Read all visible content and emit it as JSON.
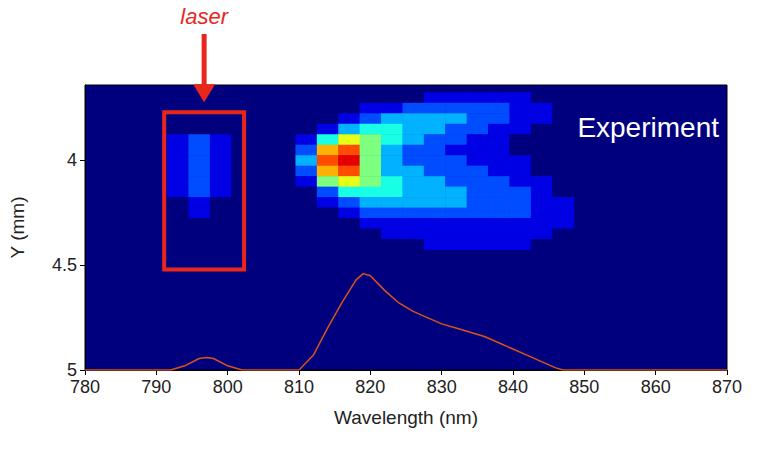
{
  "chart_data": {
    "type": "heatmap",
    "x_label": "Wavelength (nm)",
    "y_label": "Y (mm)",
    "xlim": [
      780,
      870
    ],
    "xticks": [
      780,
      790,
      800,
      810,
      820,
      830,
      840,
      850,
      860,
      870
    ],
    "ylim": [
      5,
      3.64
    ],
    "yticks": [
      4,
      4.5,
      5
    ],
    "grid": false,
    "annotation": {
      "text": "Experiment",
      "color": "#ffffff"
    },
    "highlight": {
      "text": "laser",
      "color": "#e8261c",
      "xlim": [
        791.1,
        802.3
      ],
      "ylim": [
        4.52,
        3.77
      ]
    },
    "heatmap": {
      "x": [
        793,
        796,
        799,
        802,
        805,
        808,
        811,
        814,
        817,
        820,
        823,
        826,
        829,
        832,
        835,
        838,
        841,
        844,
        847
      ],
      "y": [
        3.7,
        3.75,
        3.8,
        3.85,
        3.9,
        3.95,
        4.0,
        4.05,
        4.1,
        4.15,
        4.2,
        4.25,
        4.3,
        4.35,
        4.4
      ],
      "zlim": [
        0,
        10
      ],
      "z": [
        [
          0,
          0,
          0,
          0,
          0,
          0,
          0,
          0,
          0,
          0,
          0,
          0,
          1,
          1,
          1,
          1,
          1,
          0,
          0
        ],
        [
          0,
          0,
          0,
          0,
          0,
          0,
          0,
          0,
          0,
          1,
          1,
          2,
          2,
          2,
          2,
          2,
          1,
          1,
          0
        ],
        [
          0,
          0,
          0,
          0,
          0,
          0,
          0,
          0,
          1,
          2,
          3,
          3,
          3,
          3,
          2,
          2,
          1,
          1,
          0
        ],
        [
          0,
          0,
          0,
          0,
          0,
          0,
          0,
          1,
          3,
          4,
          4,
          3,
          3,
          2,
          2,
          1,
          1,
          0,
          0
        ],
        [
          1,
          2,
          1,
          0,
          0,
          0,
          1,
          4,
          6,
          5,
          4,
          3,
          2,
          2,
          1,
          1,
          0,
          0,
          0
        ],
        [
          1,
          2,
          1,
          0,
          0,
          0,
          2,
          7,
          8,
          5,
          3,
          2,
          2,
          1,
          1,
          1,
          0,
          0,
          0
        ],
        [
          1,
          2,
          1,
          0,
          0,
          0,
          3,
          8,
          9,
          5,
          3,
          2,
          2,
          2,
          1,
          1,
          1,
          0,
          0
        ],
        [
          1,
          2,
          1,
          0,
          0,
          0,
          2,
          7,
          8,
          5,
          3,
          3,
          2,
          2,
          2,
          1,
          1,
          0,
          0
        ],
        [
          1,
          2,
          1,
          0,
          0,
          0,
          1,
          5,
          6,
          5,
          4,
          3,
          3,
          2,
          2,
          2,
          1,
          1,
          0
        ],
        [
          1,
          2,
          1,
          0,
          0,
          0,
          0,
          2,
          4,
          4,
          4,
          3,
          3,
          3,
          2,
          2,
          2,
          1,
          0
        ],
        [
          0,
          1,
          0,
          0,
          0,
          0,
          0,
          1,
          2,
          3,
          3,
          3,
          3,
          3,
          2,
          2,
          2,
          1,
          1
        ],
        [
          0,
          1,
          0,
          0,
          0,
          0,
          0,
          0,
          1,
          2,
          2,
          2,
          2,
          2,
          2,
          2,
          2,
          1,
          1
        ],
        [
          0,
          0,
          0,
          0,
          0,
          0,
          0,
          0,
          0,
          1,
          1,
          1,
          1,
          1,
          1,
          1,
          1,
          1,
          1
        ],
        [
          0,
          0,
          0,
          0,
          0,
          0,
          0,
          0,
          0,
          0,
          1,
          1,
          1,
          1,
          1,
          1,
          1,
          1,
          0
        ],
        [
          0,
          0,
          0,
          0,
          0,
          0,
          0,
          0,
          0,
          0,
          0,
          0,
          1,
          1,
          1,
          1,
          1,
          0,
          0
        ]
      ]
    },
    "series": [
      {
        "type": "line",
        "color": "#d95319",
        "x": [
          780,
          792,
          794,
          796,
          797,
          798,
          800,
          802,
          810,
          812,
          814,
          816,
          818,
          819,
          820,
          822,
          824,
          826,
          828,
          830,
          832,
          834,
          836,
          838,
          840,
          842,
          844,
          846,
          847,
          870
        ],
        "values": [
          5,
          5,
          4.98,
          4.945,
          4.94,
          4.945,
          4.98,
          5,
          5,
          4.93,
          4.8,
          4.68,
          4.57,
          4.54,
          4.55,
          4.62,
          4.68,
          4.72,
          4.75,
          4.78,
          4.8,
          4.82,
          4.84,
          4.87,
          4.9,
          4.93,
          4.96,
          4.99,
          5,
          5
        ]
      }
    ]
  }
}
